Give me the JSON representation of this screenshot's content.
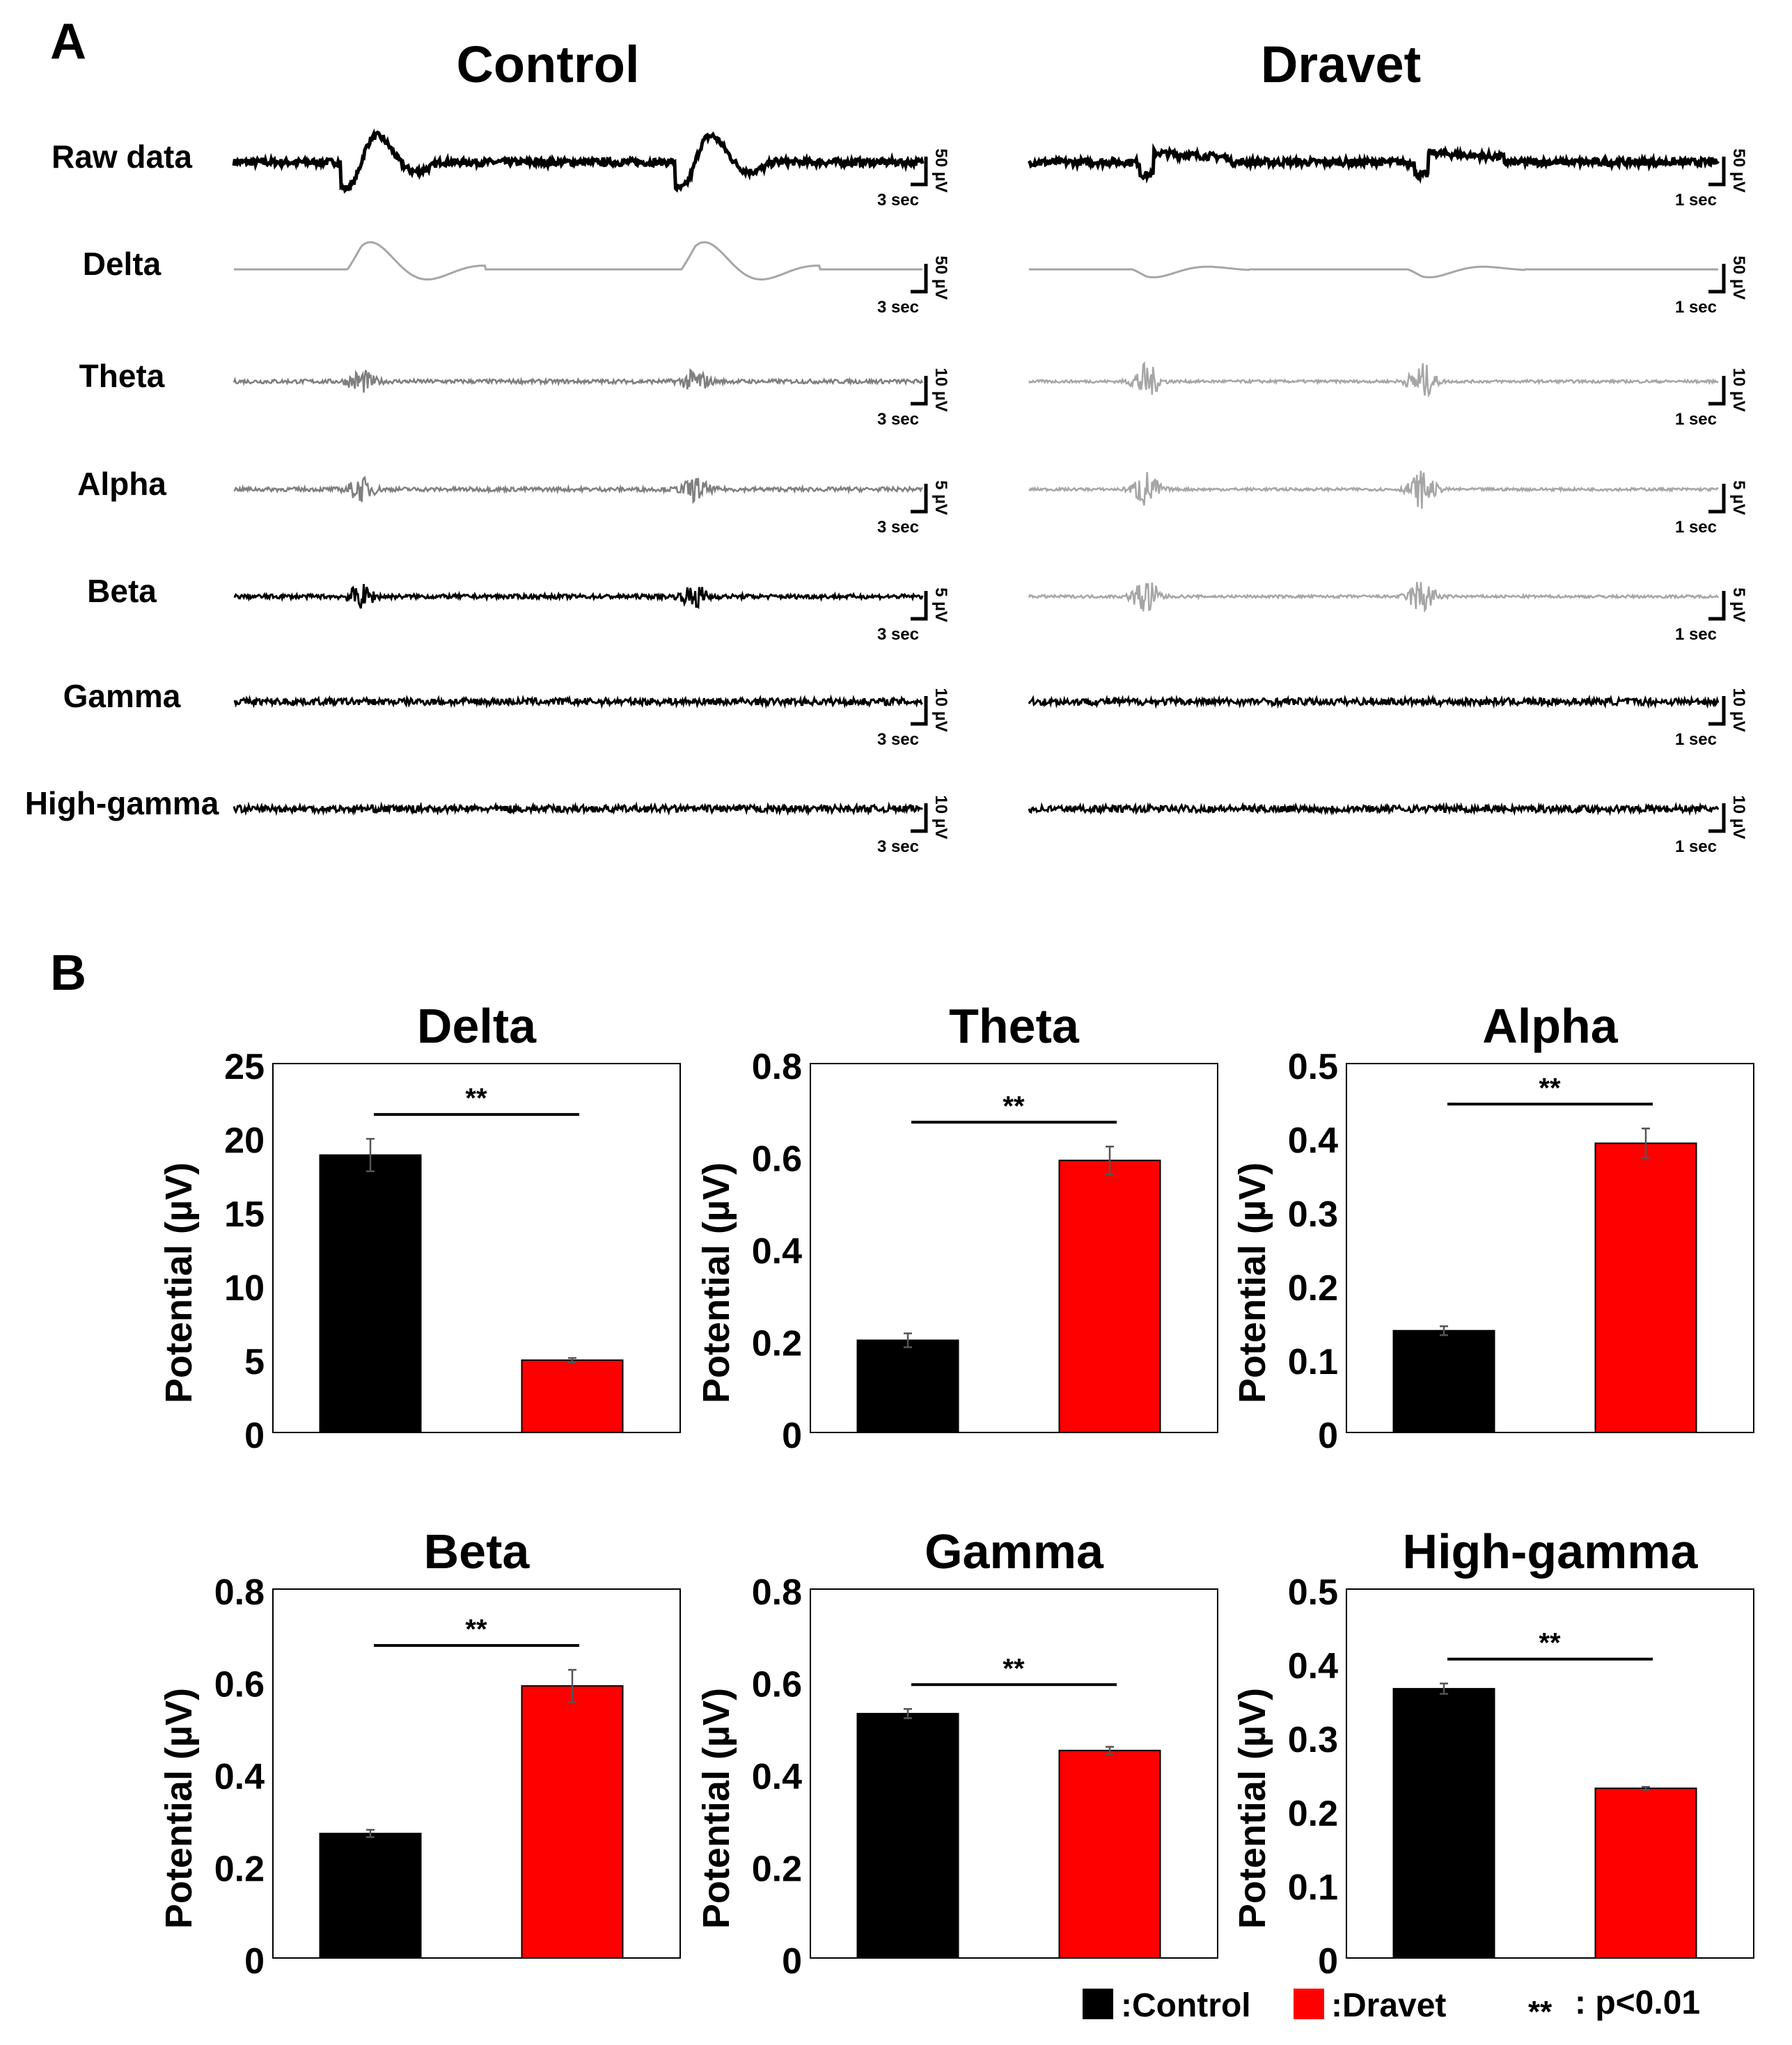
{
  "panel_a": {
    "label": "A",
    "columns": [
      {
        "title": "Control",
        "time_scale": "3 sec",
        "bursts": [
          0.185,
          0.67
        ]
      },
      {
        "title": "Dravet",
        "time_scale": "1 sec",
        "bursts": [
          0.17,
          0.57
        ]
      }
    ],
    "rows": [
      {
        "name": "Raw data",
        "amp_scale": "50 µV",
        "kind": "raw",
        "dravet_style": "gray-no"
      },
      {
        "name": "Delta",
        "amp_scale": "50 µV",
        "kind": "delta",
        "dravet_style": "gray"
      },
      {
        "name": "Theta",
        "amp_scale": "10 µV",
        "kind": "osc",
        "dravet_style": "gray-burst"
      },
      {
        "name": "Alpha",
        "amp_scale": "5 µV",
        "kind": "osc",
        "dravet_style": "gray-burst"
      },
      {
        "name": "Beta",
        "amp_scale": "5 µV",
        "kind": "osc",
        "dravet_style": "gray-burst"
      },
      {
        "name": "Gamma",
        "amp_scale": "10 µV",
        "kind": "osc",
        "dravet_style": "flat"
      },
      {
        "name": "High-gamma",
        "amp_scale": "10 µV",
        "kind": "osc",
        "dravet_style": "flat"
      }
    ]
  },
  "panel_b": {
    "label": "B"
  },
  "legend": {
    "control_label": ":Control",
    "dravet_label": ":Dravet",
    "significance_marker": "**",
    "significance_label": ": p<0.01"
  },
  "colors": {
    "control": "#000000",
    "dravet": "#ff0000",
    "error": "#555555"
  },
  "chart_data": [
    {
      "type": "bar",
      "title": "Delta",
      "ylabel": "Potential (µV)",
      "categories": [
        "Control",
        "Dravet"
      ],
      "values": [
        18.8,
        4.9
      ],
      "errors": [
        1.1,
        0.15
      ],
      "ylim": [
        0,
        25
      ],
      "yticks": [
        0,
        5,
        10,
        15,
        20,
        25
      ],
      "significance": "**"
    },
    {
      "type": "bar",
      "title": "Theta",
      "ylabel": "Potential (µV)",
      "categories": [
        "Control",
        "Dravet"
      ],
      "values": [
        0.2,
        0.59
      ],
      "errors": [
        0.015,
        0.03
      ],
      "ylim": [
        0,
        0.8
      ],
      "yticks": [
        "0",
        "0.2",
        "0.4",
        "0.6",
        "0.8"
      ],
      "significance": "**"
    },
    {
      "type": "bar",
      "title": "Alpha",
      "ylabel": "Potential (µV)",
      "categories": [
        "Control",
        "Dravet"
      ],
      "values": [
        0.138,
        0.392
      ],
      "errors": [
        0.006,
        0.02
      ],
      "ylim": [
        0,
        0.5
      ],
      "yticks": [
        "0",
        "0.1",
        "0.2",
        "0.3",
        "0.4",
        "0.5"
      ],
      "significance": "**"
    },
    {
      "type": "bar",
      "title": "Beta",
      "ylabel": "Potential (µV)",
      "categories": [
        "Control",
        "Dravet"
      ],
      "values": [
        0.27,
        0.59
      ],
      "errors": [
        0.008,
        0.035
      ],
      "ylim": [
        0,
        0.8
      ],
      "yticks": [
        "0",
        "0.2",
        "0.4",
        "0.6",
        "0.8"
      ],
      "significance": "**"
    },
    {
      "type": "bar",
      "title": "Gamma",
      "ylabel": "Potential (µV)",
      "categories": [
        "Control",
        "Dravet"
      ],
      "values": [
        0.53,
        0.45
      ],
      "errors": [
        0.01,
        0.008
      ],
      "ylim": [
        0,
        0.8
      ],
      "yticks": [
        "0",
        "0.2",
        "0.4",
        "0.6",
        "0.8"
      ],
      "significance": "**"
    },
    {
      "type": "bar",
      "title": "High-gamma",
      "ylabel": "Potential (µV)",
      "categories": [
        "Control",
        "Dravet"
      ],
      "values": [
        0.365,
        0.23
      ],
      "errors": [
        0.007,
        0.002
      ],
      "ylim": [
        0,
        0.5
      ],
      "yticks": [
        "0",
        "0.1",
        "0.2",
        "0.3",
        "0.4",
        "0.5"
      ],
      "significance": "**"
    }
  ]
}
